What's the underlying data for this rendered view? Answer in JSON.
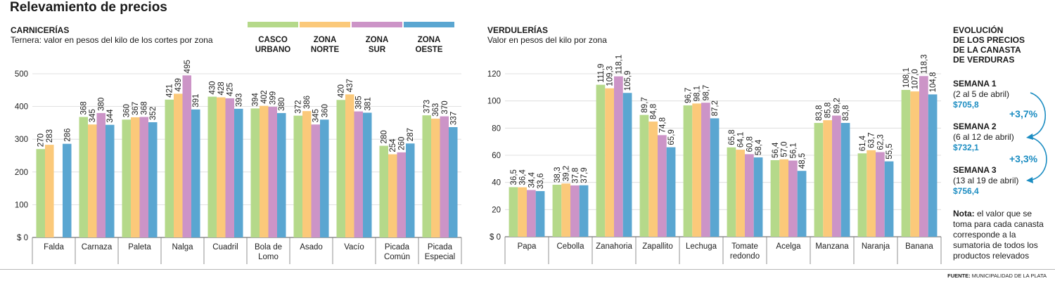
{
  "title": "Relevamiento de precios",
  "legend": [
    {
      "label": "CASCO\nURBANO",
      "color": "#b5d98a"
    },
    {
      "label": "ZONA\nNORTE",
      "color": "#fbc97a"
    },
    {
      "label": "ZONA\nSUR",
      "color": "#cc94c7"
    },
    {
      "label": "ZONA\nOESTE",
      "color": "#5aa6d1"
    }
  ],
  "carnicerias": {
    "title": "CARNICERÍAS",
    "subtitle": "Ternera: valor en pesos del kilo de los cortes por zona"
  },
  "verdulerias": {
    "title": "VERDULERÍAS",
    "subtitle": "Valor en pesos del kilo por zona"
  },
  "chart_data": [
    {
      "type": "bar",
      "title": "CARNICERÍAS",
      "subtitle": "Ternera: valor en pesos del kilo de los cortes por zona",
      "categories": [
        "Falda",
        "Carnaza",
        "Paleta",
        "Nalga",
        "Cuadril",
        "Bola de\nLomo",
        "Asado",
        "Vacío",
        "Picada\nComún",
        "Picada\nEspecial"
      ],
      "series": [
        {
          "name": "CASCO URBANO",
          "values": [
            270,
            368,
            360,
            421,
            430,
            394,
            372,
            420,
            280,
            373
          ]
        },
        {
          "name": "ZONA NORTE",
          "values": [
            283,
            345,
            367,
            439,
            428,
            402,
            386,
            437,
            254,
            363
          ]
        },
        {
          "name": "ZONA SUR",
          "values": [
            null,
            380,
            368,
            495,
            425,
            399,
            345,
            385,
            260,
            370
          ]
        },
        {
          "name": "ZONA OESTE",
          "values": [
            286,
            344,
            352,
            391,
            393,
            380,
            360,
            381,
            287,
            337
          ]
        }
      ],
      "value_labels": [
        [
          "270",
          "368",
          "360",
          "421",
          "430",
          "394",
          "372",
          "420",
          "280",
          "373"
        ],
        [
          "283",
          "345",
          "367",
          "439",
          "428",
          "402",
          "386",
          "437",
          "254",
          "363"
        ],
        [
          "",
          "380",
          "368",
          "495",
          "425",
          "399",
          "345",
          "385",
          "260",
          "370"
        ],
        [
          "286",
          "344",
          "352",
          "391",
          "393",
          "380",
          "360",
          "381",
          "287",
          "337"
        ]
      ],
      "ylim": [
        0,
        500
      ],
      "yticks": [
        0,
        100,
        200,
        300,
        400,
        500
      ],
      "ytick_labels": [
        "$ 0",
        "100",
        "200",
        "300",
        "400",
        "500"
      ],
      "grid": true
    },
    {
      "type": "bar",
      "title": "VERDULERÍAS",
      "subtitle": "Valor en pesos del kilo por zona",
      "categories": [
        "Papa",
        "Cebolla",
        "Zanahoria",
        "Zapallito",
        "Lechuga",
        "Tomate\nredondo",
        "Acelga",
        "Manzana",
        "Naranja",
        "Banana"
      ],
      "series": [
        {
          "name": "CASCO URBANO",
          "values": [
            36.5,
            38.3,
            111.9,
            89.7,
            96.7,
            65.8,
            56.4,
            83.8,
            61.4,
            108.1
          ]
        },
        {
          "name": "ZONA NORTE",
          "values": [
            36.4,
            39.2,
            109.3,
            84.8,
            98.1,
            64.1,
            57.0,
            85.8,
            63.7,
            107.0
          ]
        },
        {
          "name": "ZONA SUR",
          "values": [
            34.4,
            37.8,
            118.1,
            74.8,
            98.7,
            60.8,
            56.1,
            89.2,
            62.3,
            118.3
          ]
        },
        {
          "name": "ZONA OESTE",
          "values": [
            33.6,
            37.9,
            105.9,
            65.9,
            87.2,
            58.4,
            48.5,
            83.8,
            55.5,
            104.8
          ]
        }
      ],
      "value_labels": [
        [
          "36,5",
          "38,3",
          "111,9",
          "89,7",
          "96,7",
          "65,8",
          "56,4",
          "83,8",
          "61,4",
          "108,1"
        ],
        [
          "36,4",
          "39,2",
          "109,3",
          "84,8",
          "98,1",
          "64,1",
          "57,0",
          "85,8",
          "63,7",
          "107,0"
        ],
        [
          "34,4",
          "37,8",
          "118,1",
          "74,8",
          "98,7",
          "60,8",
          "56,1",
          "89,2",
          "62,3",
          "118,3"
        ],
        [
          "33,6",
          "37,9",
          "105,9",
          "65,9",
          "87,2",
          "58,4",
          "48,5",
          "83,8",
          "55,5",
          "104,8"
        ]
      ],
      "ylim": [
        0,
        120
      ],
      "yticks": [
        0,
        20,
        40,
        60,
        80,
        100,
        120
      ],
      "ytick_labels": [
        "$ 0",
        "20",
        "40",
        "60",
        "80",
        "100",
        "120"
      ],
      "grid": true
    }
  ],
  "evolucion": {
    "title": "EVOLUCIÓN\nDE LOS PRECIOS\nDE LA CANASTA\nDE VERDURAS",
    "weeks": [
      {
        "label": "SEMANA 1",
        "range": "(2 al 5 de abril)",
        "value": "$705,8"
      },
      {
        "label": "SEMANA 2",
        "range": "(6 al 12 de abril)",
        "value": "$732,1"
      },
      {
        "label": "SEMANA 3",
        "range": "(13 al 19 de abril)",
        "value": "$756,4"
      }
    ],
    "changes": [
      "+3,7%",
      "+3,3%"
    ],
    "arrow_color": "#1c8dc2",
    "note_label": "Nota:",
    "note_text": " el valor que se toma para cada canasta corresponde a la sumatoria de todos los productos relevados"
  },
  "source": {
    "label": "FUENTE:",
    "text": " MUNICIPALIDAD DE LA PLATA"
  }
}
